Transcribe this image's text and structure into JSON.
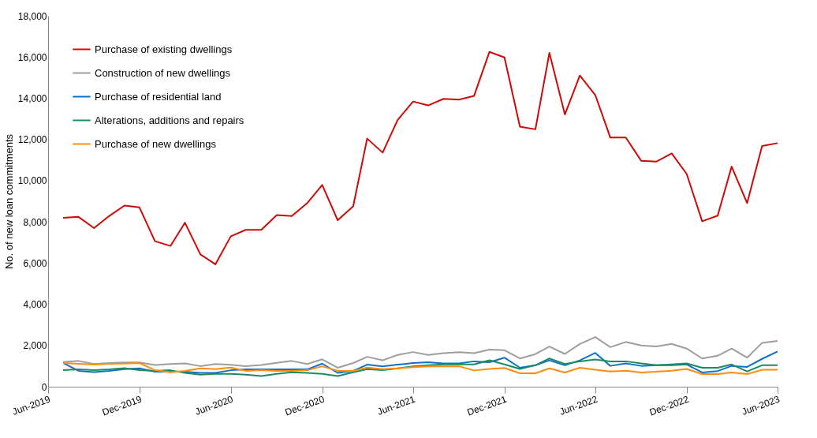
{
  "chart_data": {
    "type": "line",
    "x": [
      "2019-07",
      "2019-08",
      "2019-09",
      "2019-10",
      "2019-11",
      "2019-12",
      "2020-01",
      "2020-02",
      "2020-03",
      "2020-04",
      "2020-05",
      "2020-06",
      "2020-07",
      "2020-08",
      "2020-09",
      "2020-10",
      "2020-11",
      "2020-12",
      "2021-01",
      "2021-02",
      "2021-03",
      "2021-04",
      "2021-05",
      "2021-06",
      "2021-07",
      "2021-08",
      "2021-09",
      "2021-10",
      "2021-11",
      "2021-12",
      "2022-01",
      "2022-02",
      "2022-03",
      "2022-04",
      "2022-05",
      "2022-06",
      "2022-07",
      "2022-08",
      "2022-09",
      "2022-10",
      "2022-11",
      "2022-12",
      "2023-01",
      "2023-02",
      "2023-03",
      "2023-04",
      "2023-05",
      "2023-06"
    ],
    "ylabel": "No. of new loan commitments",
    "series": [
      {
        "name": "Purchase of existing dwellings",
        "color": "#cc0a0a",
        "values": [
          8200,
          8240,
          7700,
          8280,
          8790,
          8700,
          7060,
          6830,
          7960,
          6420,
          5940,
          7300,
          7610,
          7610,
          8330,
          8280,
          8910,
          9790,
          8080,
          8750,
          12040,
          11360,
          12940,
          13840,
          13650,
          13970,
          13930,
          14110,
          16250,
          15980,
          12620,
          12490,
          16200,
          13210,
          15100,
          14150,
          12090,
          12090,
          10960,
          10920,
          11320,
          10320,
          8030,
          8300,
          10680,
          8910,
          11680,
          11820
        ]
      },
      {
        "name": "Construction of new dwellings",
        "color": "#9e9e9e",
        "values": [
          1200,
          1250,
          1100,
          1150,
          1180,
          1180,
          1050,
          1100,
          1130,
          1000,
          1100,
          1060,
          1000,
          1050,
          1160,
          1250,
          1100,
          1330,
          920,
          1150,
          1450,
          1280,
          1540,
          1680,
          1540,
          1630,
          1680,
          1630,
          1800,
          1770,
          1370,
          1580,
          1950,
          1590,
          2070,
          2410,
          1920,
          2170,
          2000,
          1950,
          2080,
          1850,
          1370,
          1500,
          1850,
          1410,
          2130,
          2220
        ]
      },
      {
        "name": "Purchase of residential land",
        "color": "#0f72c8",
        "values": [
          1150,
          770,
          710,
          770,
          850,
          890,
          730,
          730,
          730,
          670,
          670,
          800,
          840,
          840,
          840,
          840,
          840,
          1120,
          670,
          770,
          1070,
          990,
          1070,
          1150,
          1190,
          1130,
          1130,
          1230,
          1190,
          1410,
          920,
          1040,
          1280,
          1040,
          1280,
          1640,
          1010,
          1130,
          1010,
          1040,
          1040,
          1080,
          690,
          760,
          1010,
          960,
          1350,
          1710
        ]
      },
      {
        "name": "Alterations, additions and repairs",
        "color": "#1d8a62",
        "values": [
          800,
          840,
          800,
          840,
          900,
          800,
          770,
          800,
          670,
          580,
          620,
          620,
          580,
          520,
          620,
          700,
          670,
          620,
          520,
          700,
          850,
          800,
          890,
          990,
          1040,
          1080,
          1080,
          1080,
          1280,
          1080,
          860,
          1040,
          1370,
          1100,
          1230,
          1320,
          1230,
          1230,
          1130,
          1040,
          1080,
          1130,
          920,
          920,
          1080,
          740,
          1040,
          1040
        ]
      },
      {
        "name": "Purchase of new dwellings",
        "color": "#ff8c0f",
        "values": [
          1150,
          1110,
          1070,
          1110,
          1120,
          1150,
          800,
          700,
          770,
          890,
          850,
          930,
          770,
          800,
          770,
          770,
          800,
          990,
          770,
          770,
          930,
          850,
          890,
          950,
          990,
          990,
          990,
          790,
          860,
          910,
          650,
          650,
          890,
          690,
          920,
          820,
          740,
          780,
          690,
          730,
          780,
          860,
          610,
          610,
          690,
          610,
          820,
          820
        ]
      }
    ],
    "xlim": [
      "2019-06",
      "2023-06"
    ],
    "xticks": [
      {
        "value": "2019-06",
        "label": "Jun-2019"
      },
      {
        "value": "2019-12",
        "label": "Dec-2019"
      },
      {
        "value": "2020-06",
        "label": "Jun-2020"
      },
      {
        "value": "2020-12",
        "label": "Dec-2020"
      },
      {
        "value": "2021-06",
        "label": "Jun-2021"
      },
      {
        "value": "2021-12",
        "label": "Dec-2021"
      },
      {
        "value": "2022-06",
        "label": "Jun-2022"
      },
      {
        "value": "2022-12",
        "label": "Dec-2022"
      },
      {
        "value": "2023-06",
        "label": "Jun-2023"
      }
    ],
    "ylim": [
      0,
      18000
    ],
    "yticks": [
      {
        "value": 0,
        "label": "0"
      },
      {
        "value": 2000,
        "label": "2,000"
      },
      {
        "value": 4000,
        "label": "4,000"
      },
      {
        "value": 6000,
        "label": "6,000"
      },
      {
        "value": 8000,
        "label": "8,000"
      },
      {
        "value": 10000,
        "label": "10,000"
      },
      {
        "value": 12000,
        "label": "12,000"
      },
      {
        "value": 14000,
        "label": "14,000"
      },
      {
        "value": 16000,
        "label": "16,000"
      },
      {
        "value": 18000,
        "label": "18,000"
      }
    ],
    "grid": false,
    "legend": "top left",
    "line_style": "solid",
    "marker": "none"
  }
}
